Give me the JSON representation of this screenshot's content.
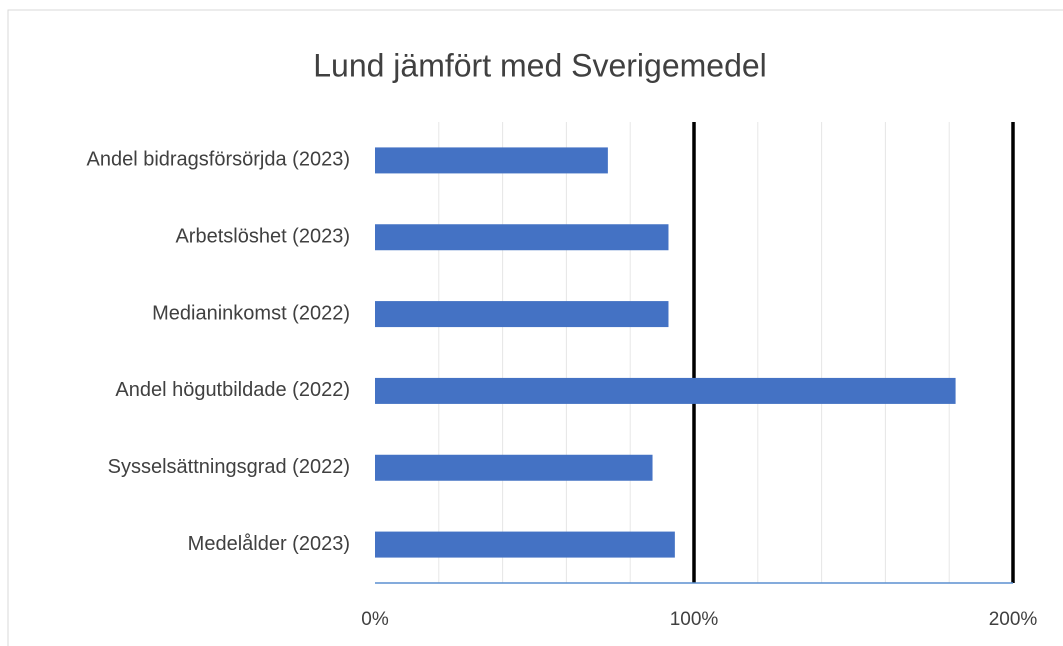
{
  "chart_data": {
    "type": "barh",
    "title": "Lund jämfört med Sverigemedel",
    "categories": [
      "Andel bidragsförsörjda (2023)",
      "Arbetslöshet (2023)",
      "Medianinkomst (2022)",
      "Andel högutbildade (2022)",
      "Sysselsättningsgrad (2022)",
      "Medelålder (2023)"
    ],
    "values": [
      73,
      92,
      92,
      182,
      87,
      94
    ],
    "color": "#4472c4",
    "xlim": [
      0,
      200
    ],
    "xticks": [
      {
        "value": 0,
        "label": "0%"
      },
      {
        "value": 100,
        "label": "100%"
      },
      {
        "value": 200,
        "label": "200%"
      }
    ],
    "minor_grid": [
      20,
      40,
      60,
      80,
      120,
      140,
      160,
      180
    ],
    "reference_lines": [
      100,
      200
    ],
    "grid": true
  }
}
